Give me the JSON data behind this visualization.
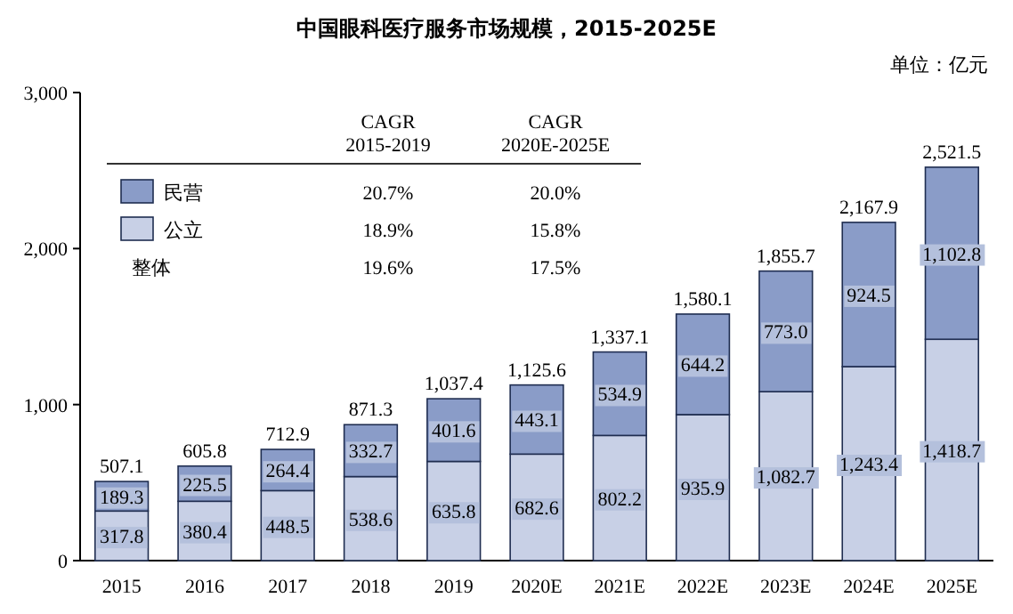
{
  "chart_data": {
    "type": "bar",
    "stacked": true,
    "title": "中国眼科医疗服务市场规模，2015-2025E",
    "subtitle": "单位：亿元",
    "categories": [
      "2015",
      "2016",
      "2017",
      "2018",
      "2019",
      "2020E",
      "2021E",
      "2022E",
      "2023E",
      "2024E",
      "2025E"
    ],
    "series": [
      {
        "name": "公立",
        "color": "#c8d0e6",
        "values": [
          317.8,
          380.4,
          448.5,
          538.6,
          635.8,
          682.6,
          802.2,
          935.9,
          1082.7,
          1243.4,
          1418.7
        ],
        "value_labels": [
          "317.8",
          "380.4",
          "448.5",
          "538.6",
          "635.8",
          "682.6",
          "802.2",
          "935.9",
          "1,082.7",
          "1,243.4",
          "1,418.7"
        ]
      },
      {
        "name": "民营",
        "color": "#8a9cc8",
        "values": [
          189.3,
          225.5,
          264.4,
          332.7,
          401.6,
          443.1,
          534.9,
          644.2,
          773.0,
          924.5,
          1102.8
        ],
        "value_labels": [
          "189.3",
          "225.5",
          "264.4",
          "332.7",
          "401.6",
          "443.1",
          "534.9",
          "644.2",
          "773.0",
          "924.5",
          "1,102.8"
        ]
      }
    ],
    "totals": [
      "507.1",
      "605.8",
      "712.9",
      "871.3",
      "1,037.4",
      "1,125.6",
      "1,337.1",
      "1,580.1",
      "1,855.7",
      "2,167.9",
      "2,521.5"
    ],
    "ylim": [
      0,
      3000
    ],
    "yticks": [
      {
        "value": 0,
        "label": "0"
      },
      {
        "value": 1000,
        "label": "1,000"
      },
      {
        "value": 2000,
        "label": "2,000"
      },
      {
        "value": 3000,
        "label": "3,000"
      }
    ],
    "legend": "top left",
    "grid": false,
    "annotations": [
      "CAGR 2015-2019",
      "CAGR 2020E-2025E",
      "18.9%",
      "15.8%",
      "20.7%",
      "20.0%",
      "整体",
      "19.6%",
      "17.5%"
    ]
  }
}
